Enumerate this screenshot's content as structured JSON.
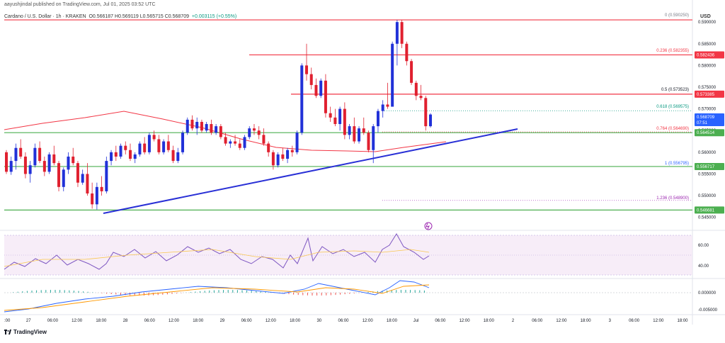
{
  "header": {
    "author_line": "aayushjindal published on TradingView.com, Jul 01, 2025 03:52 UTC"
  },
  "legend": {
    "symbol": "Cardano / U.S. Dollar · 1h · KRAKEN",
    "ohlc": "O0.566187 H0.569119 L0.565715 C0.568709",
    "change": "+0.003115 (+0.55%)"
  },
  "brand": {
    "name": "TradingView"
  },
  "price_axis": {
    "currency": "USD",
    "ticks": [
      "0.590000",
      "0.585000",
      "0.580000",
      "0.575000",
      "0.570000",
      "0.565000",
      "0.560000",
      "0.555000",
      "0.550000",
      "0.545000"
    ],
    "red_labels": [
      "0.582436",
      "0.573385"
    ],
    "green_labels": [
      "0.564514",
      "0.556717",
      "0.546681"
    ],
    "current_price": "0.568709",
    "countdown": "07:51"
  },
  "fib_labels": [
    {
      "text": "0 (0.590250)",
      "color": "#787b86"
    },
    {
      "text": "0.236 (0.582355)",
      "color": "#f23645"
    },
    {
      "text": "0.5 (0.573523)",
      "color": "#131722"
    },
    {
      "text": "0.618 (0.569575)",
      "color": "#089981"
    },
    {
      "text": "0.764 (0.564690)",
      "color": "#f23645"
    },
    {
      "text": "1 (0.556795)",
      "color": "#2962ff"
    },
    {
      "text": "1.236 (0.548900)",
      "color": "#9c27b0"
    }
  ],
  "rsi_axis": {
    "ticks": [
      "60.00",
      "40.00"
    ]
  },
  "macd_axis": {
    "ticks": [
      "0.000000",
      "-0.005000"
    ]
  },
  "time_axis": {
    "labels": [
      ":00",
      "27",
      "06:00",
      "12:00",
      "18:00",
      "28",
      "06:00",
      "12:00",
      "18:00",
      "29",
      "06:00",
      "12:00",
      "18:00",
      "30",
      "06:00",
      "12:00",
      "18:00",
      "Jul",
      "06:00",
      "12:00",
      "18:00",
      "2",
      "06:00",
      "12:00",
      "18:00",
      "3",
      "06:00",
      "12:00",
      "18:00"
    ]
  },
  "chart_data": {
    "type": "candlestick",
    "symbol": "Cardano / U.S. Dollar",
    "interval": "1h",
    "exchange": "KRAKEN",
    "currency": "USD",
    "ylim": [
      0.5425,
      0.5928
    ],
    "horizontal_levels": {
      "red": [
        0.5905,
        0.582436,
        0.573385
      ],
      "green": [
        0.564514,
        0.556717,
        0.546681
      ]
    },
    "trendline": {
      "from": [
        0.547,
        "Jun 27 18:00"
      ],
      "to": [
        0.5657,
        "Jul 01 ~10:00"
      ]
    },
    "candles_ohlc": [
      [
        0.56,
        0.5605,
        0.555,
        0.5555
      ],
      [
        0.5555,
        0.559,
        0.5548,
        0.558
      ],
      [
        0.558,
        0.562,
        0.556,
        0.561
      ],
      [
        0.561,
        0.563,
        0.5585,
        0.559
      ],
      [
        0.559,
        0.56,
        0.554,
        0.555
      ],
      [
        0.555,
        0.558,
        0.553,
        0.557
      ],
      [
        0.557,
        0.562,
        0.5565,
        0.561
      ],
      [
        0.561,
        0.5625,
        0.5575,
        0.558
      ],
      [
        0.558,
        0.559,
        0.5545,
        0.5555
      ],
      [
        0.5555,
        0.56,
        0.555,
        0.5595
      ],
      [
        0.5595,
        0.5615,
        0.557,
        0.5575
      ],
      [
        0.5575,
        0.558,
        0.551,
        0.552
      ],
      [
        0.552,
        0.5565,
        0.551,
        0.556
      ],
      [
        0.556,
        0.56,
        0.555,
        0.559
      ],
      [
        0.559,
        0.561,
        0.557,
        0.5575
      ],
      [
        0.5575,
        0.558,
        0.552,
        0.553
      ],
      [
        0.553,
        0.556,
        0.5525,
        0.555
      ],
      [
        0.555,
        0.5575,
        0.55,
        0.5505
      ],
      [
        0.5505,
        0.553,
        0.547,
        0.548
      ],
      [
        0.548,
        0.553,
        0.5468,
        0.552
      ],
      [
        0.552,
        0.5545,
        0.55,
        0.551
      ],
      [
        0.551,
        0.559,
        0.5505,
        0.558
      ],
      [
        0.558,
        0.5605,
        0.557,
        0.56
      ],
      [
        0.56,
        0.5615,
        0.558,
        0.559
      ],
      [
        0.559,
        0.562,
        0.5585,
        0.5615
      ],
      [
        0.5615,
        0.5625,
        0.5595,
        0.5605
      ],
      [
        0.5605,
        0.562,
        0.558,
        0.5585
      ],
      [
        0.5585,
        0.56,
        0.5575,
        0.5595
      ],
      [
        0.5595,
        0.5625,
        0.559,
        0.562
      ],
      [
        0.562,
        0.5635,
        0.5595,
        0.56
      ],
      [
        0.56,
        0.5645,
        0.5595,
        0.564
      ],
      [
        0.564,
        0.565,
        0.5625,
        0.563
      ],
      [
        0.563,
        0.564,
        0.5595,
        0.56
      ],
      [
        0.56,
        0.563,
        0.5595,
        0.5625
      ],
      [
        0.5625,
        0.564,
        0.56,
        0.5605
      ],
      [
        0.5605,
        0.5615,
        0.5575,
        0.558
      ],
      [
        0.558,
        0.561,
        0.5575,
        0.56
      ],
      [
        0.56,
        0.565,
        0.5595,
        0.5645
      ],
      [
        0.5645,
        0.568,
        0.564,
        0.5675
      ],
      [
        0.5675,
        0.5685,
        0.565,
        0.5655
      ],
      [
        0.5655,
        0.568,
        0.564,
        0.567
      ],
      [
        0.567,
        0.5675,
        0.5645,
        0.565
      ],
      [
        0.565,
        0.567,
        0.5645,
        0.5665
      ],
      [
        0.5665,
        0.5675,
        0.564,
        0.5645
      ],
      [
        0.5645,
        0.5665,
        0.564,
        0.566
      ],
      [
        0.566,
        0.5665,
        0.563,
        0.5635
      ],
      [
        0.5635,
        0.5645,
        0.5615,
        0.562
      ],
      [
        0.562,
        0.563,
        0.561,
        0.5625
      ],
      [
        0.5625,
        0.564,
        0.5615,
        0.562
      ],
      [
        0.562,
        0.563,
        0.5605,
        0.561
      ],
      [
        0.561,
        0.564,
        0.5605,
        0.5635
      ],
      [
        0.5635,
        0.566,
        0.563,
        0.5655
      ],
      [
        0.5655,
        0.5665,
        0.564,
        0.565
      ],
      [
        0.565,
        0.566,
        0.563,
        0.564
      ],
      [
        0.564,
        0.5655,
        0.5615,
        0.562
      ],
      [
        0.562,
        0.5625,
        0.559,
        0.56
      ],
      [
        0.56,
        0.5605,
        0.556,
        0.557
      ],
      [
        0.557,
        0.56,
        0.5565,
        0.5595
      ],
      [
        0.5595,
        0.561,
        0.558,
        0.5585
      ],
      [
        0.5585,
        0.561,
        0.5575,
        0.5605
      ],
      [
        0.5605,
        0.5615,
        0.559,
        0.56
      ],
      [
        0.56,
        0.565,
        0.5595,
        0.5645
      ],
      [
        0.5645,
        0.5805,
        0.564,
        0.58
      ],
      [
        0.58,
        0.585,
        0.5765,
        0.578
      ],
      [
        0.578,
        0.5795,
        0.5745,
        0.5755
      ],
      [
        0.5755,
        0.577,
        0.5725,
        0.573
      ],
      [
        0.573,
        0.577,
        0.5725,
        0.5765
      ],
      [
        0.5765,
        0.578,
        0.568,
        0.569
      ],
      [
        0.569,
        0.5705,
        0.567,
        0.568
      ],
      [
        0.568,
        0.57,
        0.566,
        0.5665
      ],
      [
        0.5665,
        0.5705,
        0.565,
        0.57
      ],
      [
        0.57,
        0.5715,
        0.563,
        0.564
      ],
      [
        0.564,
        0.5665,
        0.563,
        0.566
      ],
      [
        0.566,
        0.568,
        0.562,
        0.5625
      ],
      [
        0.5625,
        0.566,
        0.562,
        0.5655
      ],
      [
        0.5655,
        0.568,
        0.564,
        0.5645
      ],
      [
        0.5645,
        0.565,
        0.56,
        0.5605
      ],
      [
        0.5605,
        0.5665,
        0.5575,
        0.566
      ],
      [
        0.566,
        0.57,
        0.5645,
        0.5695
      ],
      [
        0.5695,
        0.572,
        0.568,
        0.571
      ],
      [
        0.571,
        0.576,
        0.57,
        0.5705
      ],
      [
        0.5705,
        0.5855,
        0.574,
        0.585
      ],
      [
        0.585,
        0.5905,
        0.58,
        0.59
      ],
      [
        0.59,
        0.5905,
        0.584,
        0.585
      ],
      [
        0.585,
        0.5855,
        0.58,
        0.581
      ],
      [
        0.581,
        0.5815,
        0.5755,
        0.576
      ],
      [
        0.576,
        0.5765,
        0.572,
        0.573
      ],
      [
        0.573,
        0.5755,
        0.572,
        0.5725
      ],
      [
        0.5725,
        0.573,
        0.565,
        0.566
      ],
      [
        0.566,
        0.569,
        0.5657,
        0.5687
      ]
    ]
  }
}
